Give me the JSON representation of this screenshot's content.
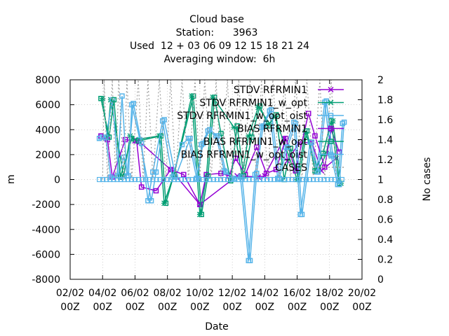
{
  "chart_data": {
    "type": "line",
    "title_lines": [
      "Cloud base",
      "Station:      3963",
      "Used  12 + 03 06 09 12 15 18 21 24",
      "Averaging window:  6h"
    ],
    "xlabel": "Date",
    "ylabel": "m",
    "y2label": "No cases",
    "xlim": [
      0,
      18
    ],
    "ylim": [
      -8000,
      8000
    ],
    "y2lim": [
      0,
      2
    ],
    "x_ticks": [
      {
        "v": 0,
        "line1": "02/02",
        "line2": "00Z"
      },
      {
        "v": 2,
        "line1": "04/02",
        "line2": "00Z"
      },
      {
        "v": 4,
        "line1": "06/02",
        "line2": "00Z"
      },
      {
        "v": 6,
        "line1": "08/02",
        "line2": "00Z"
      },
      {
        "v": 8,
        "line1": "10/02",
        "line2": "00Z"
      },
      {
        "v": 10,
        "line1": "12/02",
        "line2": "00Z"
      },
      {
        "v": 12,
        "line1": "14/02",
        "line2": "00Z"
      },
      {
        "v": 14,
        "line1": "16/02",
        "line2": "00Z"
      },
      {
        "v": 16,
        "line1": "18/02",
        "line2": "00Z"
      },
      {
        "v": 18,
        "line1": "20/02",
        "line2": "00Z"
      }
    ],
    "y_ticks": [
      -8000,
      -6000,
      -4000,
      -2000,
      0,
      2000,
      4000,
      6000,
      8000
    ],
    "y2_ticks": [
      "0",
      "0.2",
      "0.4",
      "0.6",
      "0.8",
      "1",
      "1.2",
      "1.4",
      "1.6",
      "1.8",
      "2"
    ],
    "legend_position": "top-right",
    "series": [
      {
        "name": "STDV RFRMIN1",
        "color": "#9400d3",
        "marker": "cross",
        "points": [
          [
            4.0,
            3100
          ],
          [
            4.3,
            3000
          ],
          [
            6.2,
            800
          ],
          [
            8.0,
            -2000
          ],
          [
            10.3,
            300
          ],
          [
            11.6,
            200
          ],
          [
            12.0,
            300
          ],
          [
            13.2,
            3300
          ],
          [
            13.4,
            1500
          ],
          [
            14.1,
            2900
          ],
          [
            14.9,
            3000
          ],
          [
            15.5,
            700
          ],
          [
            16.4,
            1700
          ]
        ]
      },
      {
        "name": "STDV RFRMIN1_w_opt",
        "color": "#009e73",
        "marker": "star",
        "points": [
          [
            2.0,
            6500
          ],
          [
            2.3,
            3400
          ],
          [
            2.5,
            6400
          ],
          [
            3.3,
            200
          ],
          [
            3.7,
            3500
          ],
          [
            4.0,
            3200
          ],
          [
            5.5,
            3500
          ],
          [
            5.8,
            -1900
          ],
          [
            6.4,
            400
          ],
          [
            7.5,
            6700
          ],
          [
            8.0,
            -2800
          ],
          [
            8.4,
            200
          ],
          [
            8.8,
            6600
          ],
          [
            10.1,
            4200
          ],
          [
            10.6,
            300
          ],
          [
            11.0,
            3500
          ],
          [
            11.6,
            5800
          ],
          [
            12.3,
            4500
          ],
          [
            12.6,
            5100
          ],
          [
            14.0,
            0
          ],
          [
            14.5,
            3800
          ],
          [
            15.3,
            700
          ],
          [
            15.8,
            2100
          ],
          [
            16.2,
            4700
          ],
          [
            16.7,
            -300
          ]
        ]
      },
      {
        "name": "STDV RFRMIN1_w_opt_oist",
        "color": "#56b4e9",
        "marker": "box",
        "points": [
          [
            1.9,
            3400
          ],
          [
            2.2,
            3300
          ],
          [
            2.6,
            6400
          ],
          [
            3.0,
            300
          ],
          [
            3.3,
            1800
          ],
          [
            3.6,
            300
          ],
          [
            3.8,
            6000
          ],
          [
            4.3,
            3200
          ],
          [
            5.0,
            -1700
          ],
          [
            5.3,
            600
          ],
          [
            5.8,
            4800
          ],
          [
            6.5,
            200
          ],
          [
            7.4,
            3300
          ],
          [
            7.9,
            100
          ],
          [
            8.1,
            2800
          ],
          [
            8.5,
            3900
          ],
          [
            9.0,
            3500
          ],
          [
            9.5,
            700
          ],
          [
            10.0,
            100
          ],
          [
            10.5,
            200
          ],
          [
            11.0,
            -6500
          ],
          [
            11.4,
            400
          ],
          [
            11.8,
            4200
          ],
          [
            12.3,
            5500
          ],
          [
            12.8,
            100
          ],
          [
            13.3,
            2600
          ],
          [
            13.8,
            4600
          ],
          [
            14.2,
            -2800
          ],
          [
            14.8,
            3000
          ],
          [
            15.2,
            600
          ],
          [
            15.7,
            6200
          ],
          [
            16.1,
            1900
          ],
          [
            16.5,
            -400
          ],
          [
            16.8,
            4500
          ]
        ]
      },
      {
        "name": "BIAS RFRMIN1",
        "color": "#9400d3",
        "marker": "box",
        "points": [
          [
            1.9,
            3500
          ],
          [
            2.3,
            3200
          ],
          [
            2.6,
            200
          ],
          [
            3.4,
            3200
          ],
          [
            4.1,
            3100
          ],
          [
            4.4,
            -600
          ],
          [
            5.3,
            -900
          ],
          [
            6.2,
            800
          ],
          [
            7.0,
            400
          ],
          [
            8.0,
            -2000
          ],
          [
            8.4,
            400
          ],
          [
            9.3,
            500
          ],
          [
            9.8,
            300
          ],
          [
            10.2,
            1700
          ],
          [
            10.8,
            400
          ],
          [
            11.5,
            2600
          ],
          [
            12.1,
            500
          ],
          [
            12.7,
            800
          ],
          [
            13.3,
            3300
          ],
          [
            13.9,
            700
          ],
          [
            14.7,
            5300
          ],
          [
            15.1,
            3500
          ],
          [
            15.7,
            1000
          ],
          [
            16.1,
            4000
          ],
          [
            16.6,
            2200
          ]
        ]
      },
      {
        "name": "BIAS RFRMIN1_w_opt",
        "color": "#009e73",
        "marker": "box",
        "points": [
          [
            1.9,
            6500
          ],
          [
            2.4,
            3400
          ],
          [
            2.7,
            6400
          ],
          [
            3.1,
            200
          ],
          [
            3.8,
            3300
          ],
          [
            4.2,
            3100
          ],
          [
            5.6,
            3500
          ],
          [
            5.9,
            -1900
          ],
          [
            6.4,
            400
          ],
          [
            7.6,
            6700
          ],
          [
            8.1,
            -2800
          ],
          [
            8.5,
            300
          ],
          [
            8.9,
            6600
          ],
          [
            9.3,
            3700
          ],
          [
            9.9,
            -100
          ],
          [
            10.3,
            4300
          ],
          [
            10.7,
            300
          ],
          [
            11.2,
            3400
          ],
          [
            11.7,
            5900
          ],
          [
            12.2,
            4300
          ],
          [
            12.7,
            5200
          ],
          [
            13.2,
            0
          ],
          [
            13.6,
            2500
          ],
          [
            14.1,
            0
          ],
          [
            14.6,
            3900
          ],
          [
            15.1,
            700
          ],
          [
            15.6,
            2100
          ],
          [
            16.1,
            4700
          ],
          [
            16.6,
            -300
          ]
        ]
      },
      {
        "name": "BIAS RFRMIN1_w_opt_oist",
        "color": "#56b4e9",
        "marker": "box",
        "points": [
          [
            1.8,
            3300
          ],
          [
            2.2,
            3400
          ],
          [
            2.5,
            200
          ],
          [
            2.9,
            300
          ],
          [
            3.2,
            6700
          ],
          [
            3.5,
            300
          ],
          [
            3.9,
            6100
          ],
          [
            4.4,
            2900
          ],
          [
            4.8,
            -1700
          ],
          [
            5.1,
            600
          ],
          [
            5.7,
            4700
          ],
          [
            6.3,
            200
          ],
          [
            6.9,
            2800
          ],
          [
            7.3,
            3300
          ],
          [
            7.8,
            100
          ],
          [
            8.2,
            2900
          ],
          [
            8.6,
            4000
          ],
          [
            9.1,
            3500
          ],
          [
            9.6,
            600
          ],
          [
            10.1,
            100
          ],
          [
            10.6,
            200
          ],
          [
            11.1,
            -6500
          ],
          [
            11.5,
            500
          ],
          [
            11.9,
            4300
          ],
          [
            12.4,
            5600
          ],
          [
            12.9,
            100
          ],
          [
            13.4,
            2600
          ],
          [
            13.9,
            4500
          ],
          [
            14.3,
            -2800
          ],
          [
            14.9,
            3000
          ],
          [
            15.3,
            600
          ],
          [
            15.8,
            6300
          ],
          [
            16.2,
            1900
          ],
          [
            16.6,
            -400
          ],
          [
            16.9,
            4600
          ]
        ]
      },
      {
        "name": "CASES",
        "color": "#a0a0a0",
        "marker": "dotted",
        "axis": "y2",
        "points": [
          [
            2.0,
            1
          ],
          [
            2.1,
            2
          ],
          [
            2.3,
            1
          ],
          [
            2.6,
            2
          ],
          [
            2.8,
            1
          ],
          [
            3.0,
            2
          ],
          [
            3.3,
            1
          ],
          [
            3.5,
            2
          ],
          [
            3.8,
            1
          ],
          [
            4.2,
            2
          ],
          [
            4.5,
            1
          ],
          [
            4.8,
            2
          ],
          [
            5.1,
            1
          ],
          [
            5.5,
            2
          ],
          [
            5.9,
            1
          ],
          [
            6.2,
            2
          ],
          [
            6.5,
            1
          ],
          [
            6.9,
            2
          ],
          [
            7.3,
            1
          ],
          [
            7.7,
            2
          ],
          [
            8.0,
            1
          ],
          [
            8.3,
            2
          ],
          [
            8.7,
            1
          ],
          [
            9.0,
            2
          ],
          [
            9.3,
            1
          ],
          [
            9.7,
            2
          ],
          [
            10.0,
            1
          ],
          [
            10.4,
            2
          ],
          [
            10.7,
            1
          ],
          [
            11.1,
            2
          ],
          [
            11.5,
            1
          ],
          [
            11.8,
            2
          ],
          [
            12.2,
            1
          ],
          [
            12.5,
            2
          ],
          [
            12.9,
            1
          ],
          [
            13.2,
            2
          ],
          [
            13.6,
            1
          ],
          [
            13.9,
            2
          ],
          [
            14.3,
            1
          ],
          [
            14.6,
            2
          ],
          [
            15.0,
            1
          ],
          [
            15.4,
            2
          ],
          [
            15.7,
            1
          ],
          [
            16.1,
            2
          ],
          [
            16.4,
            1
          ],
          [
            16.8,
            1
          ]
        ]
      }
    ]
  }
}
